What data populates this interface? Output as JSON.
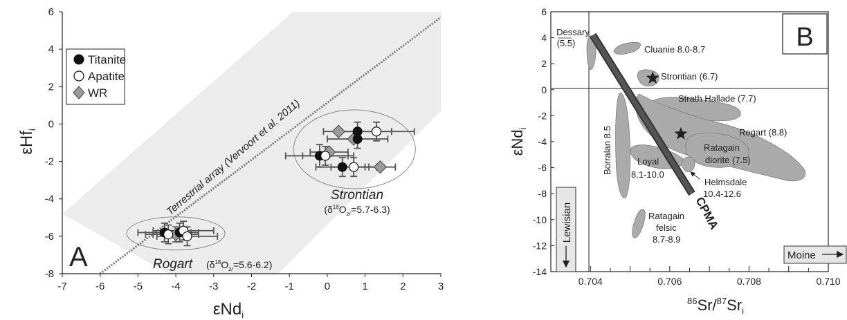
{
  "chart_data": [
    {
      "panel": "A",
      "type": "scatter",
      "xlabel": "εNd",
      "xlabel_sub": "i",
      "ylabel": "εHf",
      "ylabel_sub": "i",
      "xlim": [
        -7,
        3
      ],
      "ylim": [
        -8,
        6
      ],
      "x_ticks": [
        "-7",
        "-6",
        "-5",
        "-4",
        "-3",
        "-2",
        "-1",
        "0",
        "1",
        "2",
        "3"
      ],
      "y_ticks": [
        "-8",
        "-6",
        "-4",
        "-2",
        "0",
        "2",
        "4",
        "6"
      ],
      "legend": {
        "placement": "top-left",
        "entries": [
          "Titanite",
          "Apatite",
          "WR"
        ]
      },
      "array_label": "Terrestrial array (Vervoort et al. 2011)",
      "array_line": [
        [
          -6,
          -8
        ],
        [
          3,
          5.7
        ]
      ],
      "array_band": [
        [
          -7,
          -4.8
        ],
        [
          -0.9,
          6
        ],
        [
          3,
          6
        ],
        [
          3,
          0.7
        ],
        [
          -1.3,
          -8
        ],
        [
          -4.2,
          -8
        ]
      ],
      "series": [
        {
          "name": "Titanite",
          "marker": "filled-circle",
          "points": [
            {
              "x": -4.3,
              "y": -5.8,
              "xerr": 0.7,
              "yerr": 0.5
            },
            {
              "x": -3.9,
              "y": -5.8,
              "xerr": 0.5,
              "yerr": 0.5
            },
            {
              "x": -0.2,
              "y": -1.7,
              "xerr": 0.9,
              "yerr": 0.6
            },
            {
              "x": 0.4,
              "y": -2.3,
              "xerr": 0.7,
              "yerr": 0.5
            },
            {
              "x": 0.8,
              "y": -0.4,
              "xerr": 0.9,
              "yerr": 0.5
            },
            {
              "x": 0.8,
              "y": -0.8,
              "xerr": 0.8,
              "yerr": 0.5
            }
          ]
        },
        {
          "name": "Apatite",
          "marker": "open-circle",
          "points": [
            {
              "x": -4.2,
              "y": -5.9,
              "xerr": 0.6,
              "yerr": 0.5
            },
            {
              "x": -3.8,
              "y": -5.7,
              "xerr": 0.8,
              "yerr": 0.5
            },
            {
              "x": -3.7,
              "y": -6.0,
              "xerr": 0.8,
              "yerr": 0.5
            },
            {
              "x": -0.05,
              "y": -1.7,
              "xerr": 0.6,
              "yerr": 0.5
            },
            {
              "x": 0.7,
              "y": -2.3,
              "xerr": 0.6,
              "yerr": 0.5
            },
            {
              "x": 1.3,
              "y": -0.4,
              "xerr": 1.0,
              "yerr": 0.5
            }
          ]
        },
        {
          "name": "WR",
          "marker": "diamond",
          "points": [
            {
              "x": -4.0,
              "y": -5.9,
              "xerr": 0.6,
              "yerr": 0.4
            },
            {
              "x": 0.3,
              "y": -0.4,
              "xerr": 0.0,
              "yerr": 0.0
            },
            {
              "x": 0.05,
              "y": -1.5,
              "xerr": 0.5,
              "yerr": 0.0
            },
            {
              "x": 0.7,
              "y": -0.8,
              "xerr": 0.0,
              "yerr": 0.0
            },
            {
              "x": 1.4,
              "y": -2.3,
              "xerr": 0.4,
              "yerr": 0.0
            }
          ]
        }
      ],
      "group_labels": {
        "strontian": "Strontian",
        "strontian_note": "=5.7-6.3",
        "rogart": "Rogart",
        "rogart_note": "=5.6-6.2"
      }
    },
    {
      "panel": "B",
      "type": "scatter",
      "xlabel_pre": "86",
      "xlabel_a": "Sr/",
      "xlabel_sup": "87",
      "xlabel_b": "Sr",
      "xlabel_sub": "i",
      "ylabel": "εNd",
      "ylabel_sub": "i",
      "xlim": [
        0.703,
        0.71
      ],
      "ylim": [
        -14,
        6
      ],
      "x_ticks": [
        "0.704",
        "0.706",
        "0.708",
        "0.710"
      ],
      "y_ticks": [
        "6",
        "4",
        "2",
        "0",
        "-2",
        "-4",
        "-6",
        "-8",
        "-10",
        "-12",
        "-14"
      ],
      "fields": [
        {
          "name": "Dessary",
          "label": "Dessary",
          "sub": "(5.5)"
        },
        {
          "name": "Cluanie",
          "label": "Cluanie 8.0-8.7"
        },
        {
          "name": "Strontian",
          "label": "Strontian (6.7)",
          "star": [
            0.70557,
            0.9
          ]
        },
        {
          "name": "Strath Hallade",
          "label": "Strath Hallade (7.7)"
        },
        {
          "name": "Rogart",
          "label": "Rogart (8.8)",
          "star": [
            0.70628,
            -3.4
          ]
        },
        {
          "name": "Ratagain diorite",
          "label": "Ratagain",
          "sub": "diorite (7.5)"
        },
        {
          "name": "Borralan",
          "label": "Borralan 8.5"
        },
        {
          "name": "Loyal",
          "label": "Loyal",
          "sub": "8.1-10.0"
        },
        {
          "name": "Helmsdale",
          "label": "Helmsdale",
          "sub": "10.4-12.6"
        },
        {
          "name": "Ratagain felsic",
          "label": "Ratagain",
          "sub": "felsic",
          "sub2": "8.7-8.9"
        }
      ],
      "cpma_label": "CPMA",
      "cpma_line": [
        [
          0.70406,
          4.2
        ],
        [
          0.70656,
          -8.0
        ]
      ],
      "lewisian_label": "Lewisian",
      "moine_label": "Moine"
    }
  ]
}
